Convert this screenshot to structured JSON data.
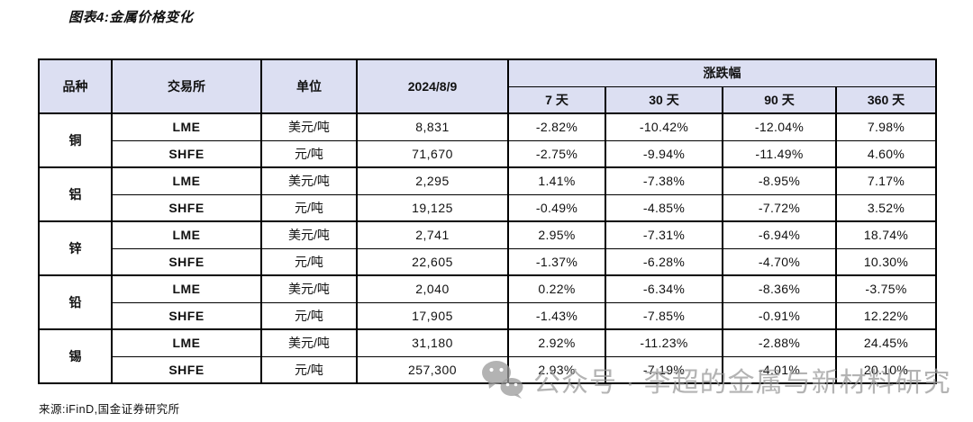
{
  "title": "图表4:金属价格变化",
  "source": "来源:iFinD,国金证券研究所",
  "watermark": {
    "icon": "wechat-icon",
    "text": "公众号 · 李超的金属与新材料研究"
  },
  "colors": {
    "header_bg": "#dcdff2",
    "border": "#000000",
    "watermark_gray": "#999999"
  },
  "chart_data": {
    "type": "table",
    "title": "图表4:金属价格变化",
    "header": {
      "variety": "品种",
      "exchange": "交易所",
      "unit": "单位",
      "date": "2024/8/9",
      "change": "涨跌幅",
      "periods": [
        "7 天",
        "30 天",
        "90 天",
        "360 天"
      ]
    },
    "groups": [
      {
        "variety": "铜",
        "rows": [
          {
            "exchange": "LME",
            "unit": "美元/吨",
            "price": "8,831",
            "changes": [
              "-2.82%",
              "-10.42%",
              "-12.04%",
              "7.98%"
            ]
          },
          {
            "exchange": "SHFE",
            "unit": "元/吨",
            "price": "71,670",
            "changes": [
              "-2.75%",
              "-9.94%",
              "-11.49%",
              "4.60%"
            ]
          }
        ]
      },
      {
        "variety": "铝",
        "rows": [
          {
            "exchange": "LME",
            "unit": "美元/吨",
            "price": "2,295",
            "changes": [
              "1.41%",
              "-7.38%",
              "-8.95%",
              "7.17%"
            ]
          },
          {
            "exchange": "SHFE",
            "unit": "元/吨",
            "price": "19,125",
            "changes": [
              "-0.49%",
              "-4.85%",
              "-7.72%",
              "3.52%"
            ]
          }
        ]
      },
      {
        "variety": "锌",
        "rows": [
          {
            "exchange": "LME",
            "unit": "美元/吨",
            "price": "2,741",
            "changes": [
              "2.95%",
              "-7.31%",
              "-6.94%",
              "18.74%"
            ]
          },
          {
            "exchange": "SHFE",
            "unit": "元/吨",
            "price": "22,605",
            "changes": [
              "-1.37%",
              "-6.28%",
              "-4.70%",
              "10.30%"
            ]
          }
        ]
      },
      {
        "variety": "铅",
        "rows": [
          {
            "exchange": "LME",
            "unit": "美元/吨",
            "price": "2,040",
            "changes": [
              "0.22%",
              "-6.34%",
              "-8.36%",
              "-3.75%"
            ]
          },
          {
            "exchange": "SHFE",
            "unit": "元/吨",
            "price": "17,905",
            "changes": [
              "-1.43%",
              "-7.85%",
              "-0.91%",
              "12.22%"
            ]
          }
        ]
      },
      {
        "variety": "锡",
        "rows": [
          {
            "exchange": "LME",
            "unit": "美元/吨",
            "price": "31,180",
            "changes": [
              "2.92%",
              "-11.23%",
              "-2.88%",
              "24.45%"
            ]
          },
          {
            "exchange": "SHFE",
            "unit": "元/吨",
            "price": "257,300",
            "changes": [
              "2.93%",
              "-7.19%",
              "-4.01%",
              "20.10%"
            ]
          }
        ]
      }
    ]
  }
}
